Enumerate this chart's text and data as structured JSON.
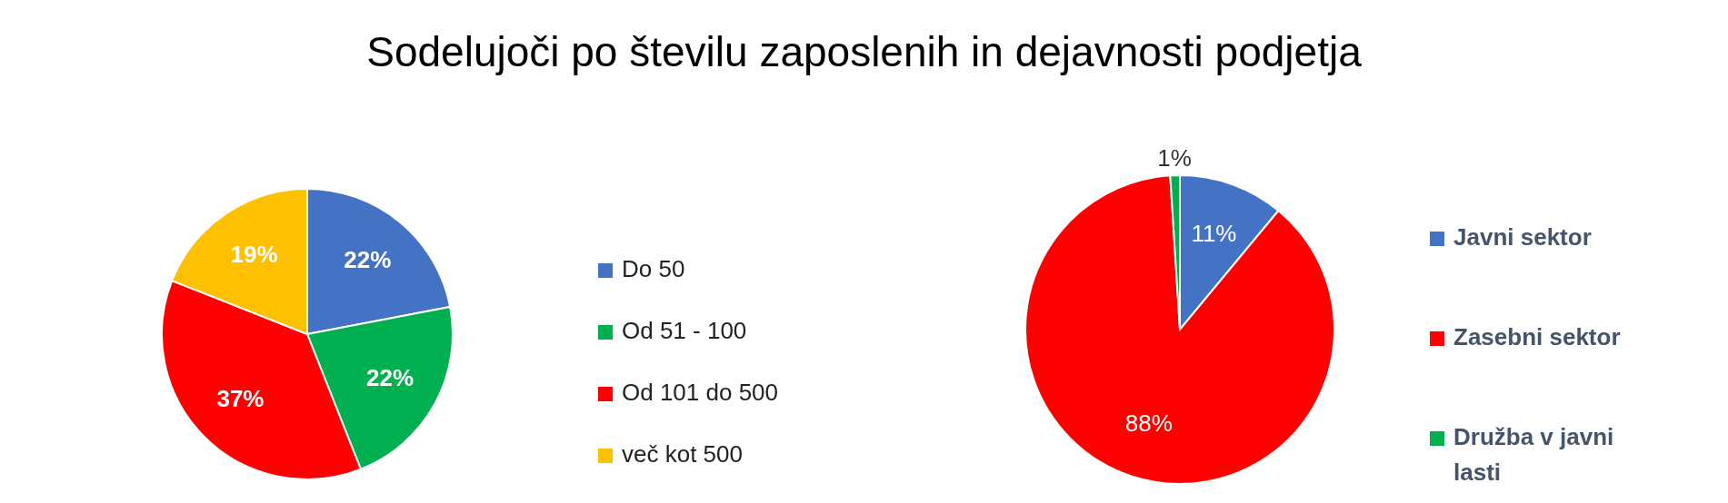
{
  "chart_data": [
    {
      "type": "pie",
      "title": "Sodelujoči po številu zaposlenih in dejavnosti podjetja",
      "categories": [
        "Do 50",
        "Od 51 - 100",
        "Od 101 do 500",
        "več kot 500"
      ],
      "values": [
        22,
        22,
        37,
        19
      ],
      "colors": [
        "#4472c4",
        "#00b050",
        "#ff0000",
        "#ffc000"
      ],
      "value_labels": [
        "22%",
        "22%",
        "37%",
        "19%"
      ],
      "legend": "right"
    },
    {
      "type": "pie",
      "categories": [
        "Javni sektor",
        "Zasebni sektor",
        "Družba v javni lasti"
      ],
      "values": [
        11,
        88,
        1
      ],
      "colors": [
        "#4472c4",
        "#ff0000",
        "#00b050"
      ],
      "value_labels": [
        "11%",
        "88%",
        "1%"
      ],
      "legend": "right"
    }
  ]
}
